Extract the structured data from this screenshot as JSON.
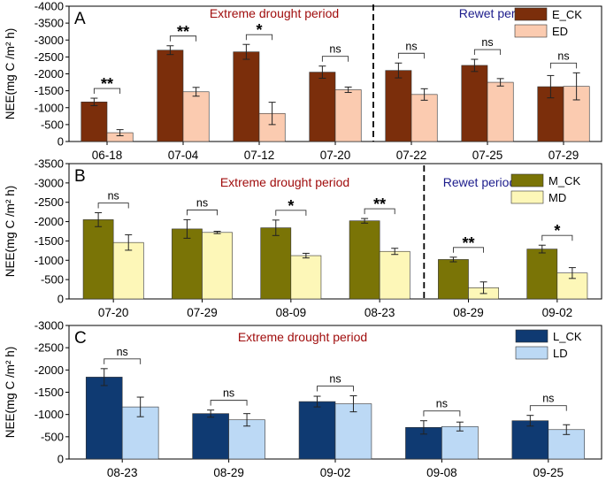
{
  "chart_data": [
    {
      "type": "bar",
      "panel_label": "A",
      "ylabel": "NEE(mg C /m² h)",
      "ylim": [
        0,
        -4000
      ],
      "yticks": [
        0,
        -500,
        -1000,
        -1500,
        -2000,
        -2500,
        -3000,
        -3500,
        -4000
      ],
      "categories": [
        "06-18",
        "07-04",
        "07-12",
        "07-20",
        "07-22",
        "07-25",
        "07-29"
      ],
      "series": [
        {
          "name": "E_CK",
          "color": "#7b2e0b",
          "values": [
            -1170,
            -2700,
            -2650,
            -2050,
            -2100,
            -2250,
            -1620
          ],
          "errors": [
            110,
            130,
            220,
            180,
            220,
            180,
            330
          ]
        },
        {
          "name": "ED",
          "color": "#fbcbb0",
          "values": [
            -260,
            -1470,
            -830,
            -1530,
            -1390,
            -1750,
            -1630
          ],
          "errors": [
            90,
            130,
            330,
            80,
            170,
            110,
            400
          ]
        }
      ],
      "significance": [
        "**",
        "**",
        "*",
        "ns",
        "ns",
        "ns",
        "ns"
      ],
      "annotations": [
        {
          "text": "Extreme drought period",
          "color": "#a00d0d"
        },
        {
          "text": "Rewet period",
          "color": "#1c1c8c"
        }
      ],
      "divider_after_index": 3,
      "legend": "top-right"
    },
    {
      "type": "bar",
      "panel_label": "B",
      "ylabel": "NEE(mg C /m² h)",
      "ylim": [
        0,
        -3500
      ],
      "yticks": [
        0,
        -500,
        -1000,
        -1500,
        -2000,
        -2500,
        -3000,
        -3500
      ],
      "categories": [
        "07-20",
        "07-29",
        "08-09",
        "08-23",
        "08-29",
        "09-02"
      ],
      "series": [
        {
          "name": "M_CK",
          "color": "#7a7406",
          "values": [
            -2050,
            -1810,
            -1840,
            -2020,
            -1020,
            -1290
          ],
          "errors": [
            180,
            240,
            200,
            60,
            60,
            100
          ]
        },
        {
          "name": "MD",
          "color": "#fdf7b8",
          "values": [
            -1460,
            -1720,
            -1120,
            -1230,
            -290,
            -670
          ],
          "errors": [
            200,
            30,
            60,
            80,
            150,
            140
          ]
        }
      ],
      "significance": [
        "ns",
        "ns",
        "*",
        "**",
        "**",
        "*"
      ],
      "annotations": [
        {
          "text": "Extreme drought period",
          "color": "#a00d0d"
        },
        {
          "text": "Rewet period",
          "color": "#1c1c8c"
        }
      ],
      "divider_after_index": 3,
      "legend": "top-right"
    },
    {
      "type": "bar",
      "panel_label": "C",
      "ylabel": "NEE(mg C /m² h)",
      "ylim": [
        0,
        -3000
      ],
      "yticks": [
        0,
        -500,
        -1000,
        -1500,
        -2000,
        -2500,
        -3000
      ],
      "categories": [
        "08-23",
        "08-29",
        "09-02",
        "09-08",
        "09-25"
      ],
      "series": [
        {
          "name": "L_CK",
          "color": "#0f3a72",
          "values": [
            -1840,
            -1020,
            -1290,
            -710,
            -860
          ],
          "errors": [
            190,
            80,
            120,
            150,
            120
          ]
        },
        {
          "name": "LD",
          "color": "#bcd9f5",
          "values": [
            -1170,
            -880,
            -1240,
            -730,
            -660
          ],
          "errors": [
            220,
            140,
            180,
            100,
            110
          ]
        }
      ],
      "significance": [
        "ns",
        "ns",
        "ns",
        "ns",
        "ns"
      ],
      "annotations": [
        {
          "text": "Extreme drought period",
          "color": "#a00d0d"
        }
      ],
      "divider_after_index": null,
      "legend": "top-right"
    }
  ]
}
